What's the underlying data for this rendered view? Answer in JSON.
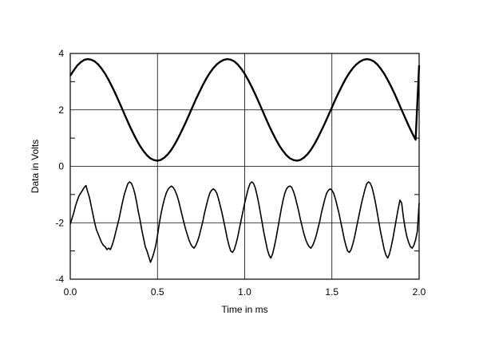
{
  "chart_data": {
    "type": "line",
    "title": "",
    "xlabel": "Time in ms",
    "ylabel": "Data in Volts",
    "xlim": [
      0.0,
      2.0
    ],
    "ylim": [
      -4,
      4
    ],
    "grid": true,
    "x_ticks": [
      0.0,
      0.5,
      1.0,
      1.5,
      2.0
    ],
    "x_tick_labels": [
      "0.0",
      "0.5",
      "1.0",
      "1.5",
      "2.0"
    ],
    "y_ticks": [
      -4,
      -2,
      0,
      2,
      4
    ],
    "y_tick_labels": [
      "-4",
      "-2",
      "0",
      "2",
      "4"
    ],
    "y_minor_ticks": [
      -3,
      -1,
      1,
      3
    ],
    "series_color": "#000000",
    "series": [
      {
        "x": [
          0.0,
          0.02,
          0.04,
          0.06,
          0.08,
          0.1,
          0.12,
          0.14,
          0.16,
          0.18,
          0.2,
          0.22,
          0.24,
          0.26,
          0.28,
          0.3,
          0.32,
          0.34,
          0.36,
          0.38,
          0.4,
          0.42,
          0.44,
          0.46,
          0.48,
          0.5,
          0.52,
          0.54,
          0.56,
          0.58,
          0.6,
          0.62,
          0.64,
          0.66,
          0.68,
          0.7,
          0.72,
          0.74,
          0.76,
          0.78,
          0.8,
          0.82,
          0.84,
          0.86,
          0.88,
          0.9,
          0.92,
          0.94,
          0.96,
          0.98,
          1.0,
          1.02,
          1.04,
          1.06,
          1.08,
          1.1,
          1.12,
          1.14,
          1.16,
          1.18,
          1.2,
          1.22,
          1.24,
          1.26,
          1.28,
          1.3,
          1.32,
          1.34,
          1.36,
          1.38,
          1.4,
          1.42,
          1.44,
          1.46,
          1.48,
          1.5,
          1.52,
          1.54,
          1.56,
          1.58,
          1.6,
          1.62,
          1.64,
          1.66,
          1.68,
          1.7,
          1.72,
          1.74,
          1.76,
          1.78,
          1.8,
          1.82,
          1.84,
          1.86,
          1.88,
          1.9,
          1.92,
          1.94,
          1.96,
          1.98,
          2.0
        ],
        "values": [
          3.21,
          3.4,
          3.57,
          3.69,
          3.77,
          3.8,
          3.78,
          3.72,
          3.61,
          3.46,
          3.28,
          3.06,
          2.82,
          2.56,
          2.28,
          2.0,
          1.72,
          1.44,
          1.18,
          0.94,
          0.72,
          0.54,
          0.39,
          0.28,
          0.22,
          0.2,
          0.23,
          0.31,
          0.43,
          0.59,
          0.79,
          1.02,
          1.27,
          1.53,
          1.81,
          2.09,
          2.37,
          2.63,
          2.88,
          3.11,
          3.31,
          3.48,
          3.61,
          3.71,
          3.77,
          3.8,
          3.78,
          3.72,
          3.61,
          3.46,
          3.28,
          3.06,
          2.82,
          2.56,
          2.28,
          2.0,
          1.72,
          1.44,
          1.18,
          0.94,
          0.72,
          0.54,
          0.39,
          0.28,
          0.22,
          0.2,
          0.23,
          0.31,
          0.43,
          0.59,
          0.79,
          1.02,
          1.27,
          1.53,
          1.81,
          2.09,
          2.37,
          2.63,
          2.88,
          3.11,
          3.31,
          3.48,
          3.61,
          3.71,
          3.77,
          3.8,
          3.78,
          3.72,
          3.61,
          3.46,
          3.28,
          3.06,
          2.82,
          2.56,
          2.28,
          2.0,
          1.72,
          1.44,
          1.18,
          0.94,
          3.58
        ]
      },
      {
        "x": [
          0.0,
          0.01,
          0.02,
          0.03,
          0.04,
          0.05,
          0.06,
          0.07,
          0.08,
          0.09,
          0.1,
          0.11,
          0.12,
          0.13,
          0.14,
          0.15,
          0.16,
          0.17,
          0.18,
          0.19,
          0.2,
          0.21,
          0.22,
          0.23,
          0.24,
          0.25,
          0.26,
          0.27,
          0.28,
          0.29,
          0.3,
          0.31,
          0.32,
          0.33,
          0.34,
          0.35,
          0.36,
          0.37,
          0.38,
          0.39,
          0.4,
          0.41,
          0.42,
          0.43,
          0.44,
          0.45,
          0.46,
          0.47,
          0.48,
          0.49,
          0.5,
          0.51,
          0.52,
          0.53,
          0.54,
          0.55,
          0.56,
          0.57,
          0.58,
          0.59,
          0.6,
          0.61,
          0.62,
          0.63,
          0.64,
          0.65,
          0.66,
          0.67,
          0.68,
          0.69,
          0.7,
          0.71,
          0.72,
          0.73,
          0.74,
          0.75,
          0.76,
          0.77,
          0.78,
          0.79,
          0.8,
          0.81,
          0.82,
          0.83,
          0.84,
          0.85,
          0.86,
          0.87,
          0.88,
          0.89,
          0.9,
          0.91,
          0.92,
          0.93,
          0.94,
          0.95,
          0.96,
          0.97,
          0.98,
          0.99,
          1.0,
          1.01,
          1.02,
          1.03,
          1.04,
          1.05,
          1.06,
          1.07,
          1.08,
          1.09,
          1.1,
          1.11,
          1.12,
          1.13,
          1.14,
          1.15,
          1.16,
          1.17,
          1.18,
          1.19,
          1.2,
          1.21,
          1.22,
          1.23,
          1.24,
          1.25,
          1.26,
          1.27,
          1.28,
          1.29,
          1.3,
          1.31,
          1.32,
          1.33,
          1.34,
          1.35,
          1.36,
          1.37,
          1.38,
          1.39,
          1.4,
          1.41,
          1.42,
          1.43,
          1.44,
          1.45,
          1.46,
          1.47,
          1.48,
          1.49,
          1.5,
          1.51,
          1.52,
          1.53,
          1.54,
          1.55,
          1.56,
          1.57,
          1.58,
          1.59,
          1.6,
          1.61,
          1.62,
          1.63,
          1.64,
          1.65,
          1.66,
          1.67,
          1.68,
          1.69,
          1.7,
          1.71,
          1.72,
          1.73,
          1.74,
          1.75,
          1.76,
          1.77,
          1.78,
          1.79,
          1.8,
          1.81,
          1.82,
          1.83,
          1.84,
          1.85,
          1.86,
          1.87,
          1.88,
          1.89,
          1.9,
          1.91,
          1.92,
          1.93,
          1.94,
          1.95,
          1.96,
          1.97,
          1.98,
          1.99,
          2.0
        ],
        "values": [
          -2.05,
          -1.85,
          -1.65,
          -1.4,
          -1.22,
          -1.05,
          -0.95,
          -0.85,
          -0.75,
          -0.68,
          -0.9,
          -1.1,
          -1.4,
          -1.7,
          -2.0,
          -2.25,
          -2.4,
          -2.55,
          -2.7,
          -2.8,
          -2.85,
          -2.95,
          -2.9,
          -2.95,
          -2.8,
          -2.6,
          -2.35,
          -2.1,
          -1.85,
          -1.55,
          -1.25,
          -1.0,
          -0.8,
          -0.62,
          -0.55,
          -0.6,
          -0.75,
          -0.95,
          -1.25,
          -1.6,
          -1.9,
          -2.25,
          -2.55,
          -2.85,
          -3.0,
          -3.2,
          -3.4,
          -3.25,
          -3.05,
          -2.8,
          -2.45,
          -2.05,
          -1.7,
          -1.4,
          -1.15,
          -0.95,
          -0.82,
          -0.75,
          -0.7,
          -0.75,
          -0.85,
          -1.0,
          -1.2,
          -1.45,
          -1.7,
          -1.95,
          -2.2,
          -2.4,
          -2.6,
          -2.75,
          -2.85,
          -2.9,
          -2.8,
          -2.65,
          -2.45,
          -2.2,
          -1.95,
          -1.65,
          -1.4,
          -1.15,
          -0.95,
          -0.85,
          -0.8,
          -0.85,
          -0.95,
          -1.15,
          -1.4,
          -1.65,
          -1.95,
          -2.25,
          -2.55,
          -2.8,
          -3.0,
          -3.05,
          -2.95,
          -2.75,
          -2.5,
          -2.2,
          -1.9,
          -1.6,
          -1.3,
          -1.05,
          -0.8,
          -0.62,
          -0.55,
          -0.6,
          -0.75,
          -1.0,
          -1.3,
          -1.65,
          -2.0,
          -2.35,
          -2.65,
          -2.95,
          -3.15,
          -3.25,
          -3.1,
          -2.85,
          -2.55,
          -2.2,
          -1.85,
          -1.5,
          -1.2,
          -0.95,
          -0.8,
          -0.72,
          -0.7,
          -0.75,
          -0.9,
          -1.1,
          -1.35,
          -1.6,
          -1.9,
          -2.15,
          -2.4,
          -2.6,
          -2.75,
          -2.85,
          -2.9,
          -2.8,
          -2.65,
          -2.45,
          -2.2,
          -1.95,
          -1.65,
          -1.4,
          -1.15,
          -0.95,
          -0.85,
          -0.8,
          -0.85,
          -0.95,
          -1.15,
          -1.4,
          -1.65,
          -1.95,
          -2.25,
          -2.55,
          -2.8,
          -3.0,
          -3.05,
          -2.95,
          -2.75,
          -2.5,
          -2.2,
          -1.9,
          -1.6,
          -1.3,
          -1.05,
          -0.8,
          -0.62,
          -0.55,
          -0.6,
          -0.75,
          -1.0,
          -1.3,
          -1.65,
          -2.0,
          -2.35,
          -2.65,
          -2.95,
          -3.15,
          -3.25,
          -3.1,
          -2.85,
          -2.55,
          -2.2,
          -1.85,
          -1.5,
          -1.2,
          -1.3,
          -1.8,
          -2.2,
          -2.5,
          -2.7,
          -2.85,
          -2.9,
          -2.8,
          -2.6,
          -2.3,
          -1.3
        ]
      }
    ]
  }
}
